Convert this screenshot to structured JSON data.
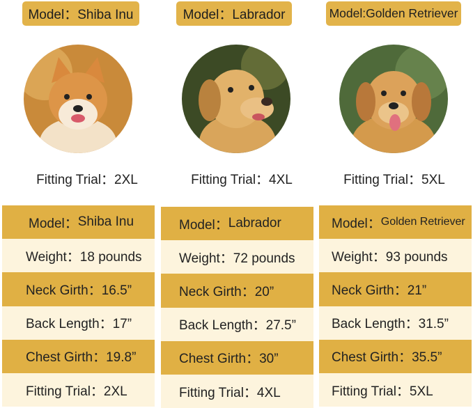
{
  "colors": {
    "gold": "#e0b044",
    "cream": "#fdf4dd"
  },
  "cards": [
    {
      "model_label": "Model：Shiba Inu",
      "photo": "shiba-inu-photo",
      "fitting": "Fitting Trial：2XL"
    },
    {
      "model_label": "Model：Labrador",
      "photo": "labrador-photo",
      "fitting": "Fitting Trial：4XL"
    },
    {
      "model_label": "Model:Golden Retriever",
      "photo": "golden-retriever-photo",
      "fitting": "Fitting Trial：5XL"
    }
  ],
  "tables": [
    {
      "model_prefix": "Model：",
      "model": "Shiba Inu",
      "weight": "Weight：18 pounds",
      "neck": "Neck Girth：16.5”",
      "back": "Back Length：17”",
      "chest": "Chest Girth：19.8”",
      "fitting": "Fitting Trial：2XL"
    },
    {
      "model_prefix": "Model：",
      "model": "Labrador",
      "weight": "Weight：72 pounds",
      "neck": "Neck Girth：20”",
      "back": "Back Length：27.5”",
      "chest": "Chest Girth：30”",
      "fitting": "Fitting Trial：4XL"
    },
    {
      "model_prefix": "Model：",
      "model": "Golden Retriever",
      "weight": "Weight：93 pounds",
      "neck": "Neck Girth：21”",
      "back": "Back Length：31.5”",
      "chest": "Chest Girth：35.5”",
      "fitting": "Fitting Trial：5XL"
    }
  ]
}
